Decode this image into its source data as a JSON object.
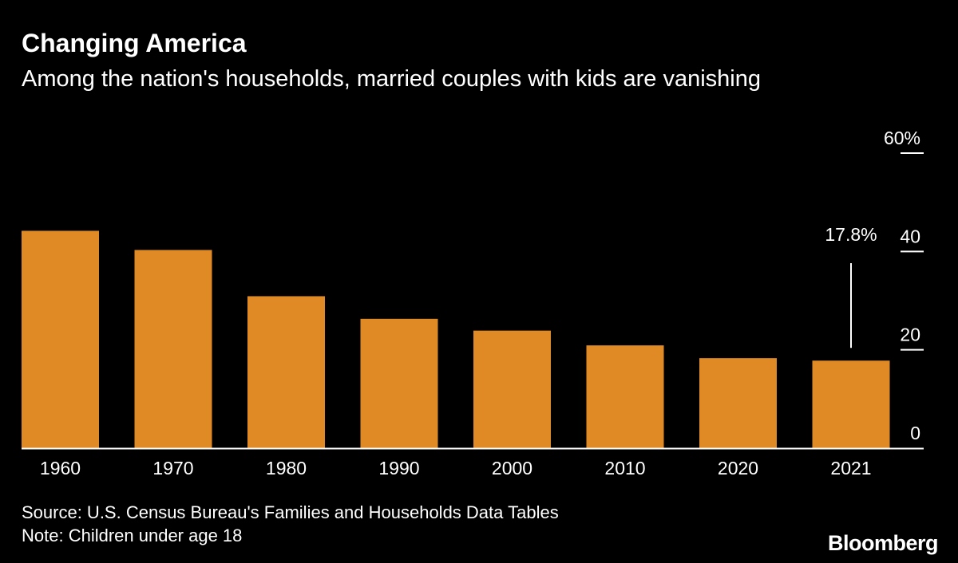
{
  "header": {
    "title": "Changing America",
    "subtitle": "Among the nation's households, married couples with kids are vanishing"
  },
  "footer": {
    "source": "Source: U.S. Census Bureau's Families and Households Data Tables",
    "note": "Note: Children under age 18",
    "brand": "Bloomberg"
  },
  "colors": {
    "background": "#000000",
    "bar": "#df8a25",
    "text": "#ffffff"
  },
  "chart_data": {
    "type": "bar",
    "categories": [
      "1960",
      "1970",
      "1980",
      "1990",
      "2000",
      "2010",
      "2020",
      "2021"
    ],
    "values": [
      44.2,
      40.3,
      30.9,
      26.3,
      23.9,
      20.9,
      18.3,
      17.8
    ],
    "title": "Changing America",
    "subtitle": "Among the nation's households, married couples with kids are vanishing",
    "xlabel": "",
    "ylabel": "",
    "ylim": [
      0,
      60
    ],
    "yticks": [
      0,
      20,
      40,
      60
    ],
    "ytick_labels": [
      "0",
      "20",
      "40",
      "60%"
    ],
    "y_axis_position": "right",
    "grid": false,
    "annotations": [
      {
        "category": "2021",
        "label": "17.8%"
      }
    ]
  }
}
